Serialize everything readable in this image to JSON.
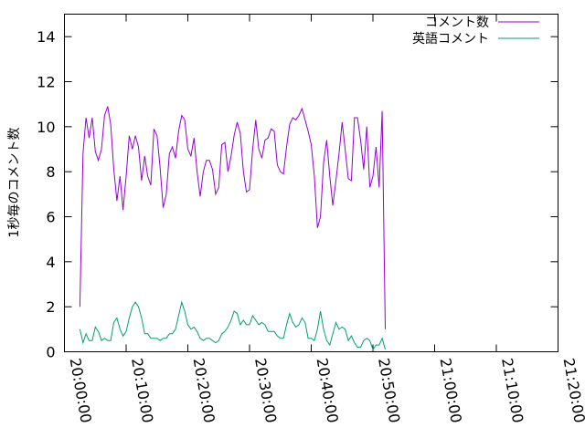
{
  "chart_data": {
    "type": "line",
    "ylabel": "1秒毎のコメント数",
    "xlabel": "",
    "legend_position": "top-right",
    "grid": false,
    "xlim": [
      "20:00:00",
      "21:20:00"
    ],
    "ylim": [
      0,
      15
    ],
    "y_ticks": [
      "0",
      "2",
      "4",
      "6",
      "8",
      "10",
      "12",
      "14"
    ],
    "x_ticks": [
      "20:00:00",
      "20:10:00",
      "20:20:00",
      "20:30:00",
      "20:40:00",
      "20:50:00",
      "21:00:00",
      "21:10:00",
      "21:20:00"
    ],
    "series": [
      {
        "name": "コメント数",
        "color": "#9400d3",
        "points": [
          [
            "20:02:30",
            2.0
          ],
          [
            "20:03:00",
            8.8
          ],
          [
            "20:03:30",
            10.4
          ],
          [
            "20:04:00",
            9.5
          ],
          [
            "20:04:30",
            10.4
          ],
          [
            "20:05:00",
            8.9
          ],
          [
            "20:05:30",
            8.5
          ],
          [
            "20:06:00",
            9.0
          ],
          [
            "20:06:30",
            10.5
          ],
          [
            "20:07:00",
            10.9
          ],
          [
            "20:07:30",
            10.1
          ],
          [
            "20:08:00",
            8.1
          ],
          [
            "20:08:30",
            6.7
          ],
          [
            "20:09:00",
            7.8
          ],
          [
            "20:09:30",
            6.3
          ],
          [
            "20:10:00",
            7.8
          ],
          [
            "20:10:30",
            9.6
          ],
          [
            "20:11:00",
            9.0
          ],
          [
            "20:11:30",
            9.6
          ],
          [
            "20:12:00",
            9.1
          ],
          [
            "20:12:30",
            7.6
          ],
          [
            "20:13:00",
            8.7
          ],
          [
            "20:13:30",
            7.8
          ],
          [
            "20:14:00",
            7.4
          ],
          [
            "20:14:30",
            9.9
          ],
          [
            "20:15:00",
            9.6
          ],
          [
            "20:15:30",
            8.2
          ],
          [
            "20:16:00",
            6.4
          ],
          [
            "20:16:30",
            7.0
          ],
          [
            "20:17:00",
            8.8
          ],
          [
            "20:17:30",
            9.1
          ],
          [
            "20:18:00",
            8.6
          ],
          [
            "20:18:30",
            9.8
          ],
          [
            "20:19:00",
            10.5
          ],
          [
            "20:19:30",
            10.3
          ],
          [
            "20:20:00",
            9.0
          ],
          [
            "20:20:30",
            8.7
          ],
          [
            "20:21:00",
            9.5
          ],
          [
            "20:21:30",
            8.0
          ],
          [
            "20:22:00",
            6.9
          ],
          [
            "20:22:30",
            8.0
          ],
          [
            "20:23:00",
            8.5
          ],
          [
            "20:23:30",
            8.5
          ],
          [
            "20:24:00",
            8.1
          ],
          [
            "20:24:30",
            7.0
          ],
          [
            "20:25:00",
            7.3
          ],
          [
            "20:25:30",
            9.2
          ],
          [
            "20:26:00",
            9.3
          ],
          [
            "20:26:30",
            8.0
          ],
          [
            "20:27:00",
            8.7
          ],
          [
            "20:27:30",
            9.6
          ],
          [
            "20:28:00",
            10.2
          ],
          [
            "20:28:30",
            9.7
          ],
          [
            "20:29:00",
            8.0
          ],
          [
            "20:29:30",
            7.1
          ],
          [
            "20:30:00",
            7.2
          ],
          [
            "20:30:30",
            9.0
          ],
          [
            "20:31:00",
            10.3
          ],
          [
            "20:31:30",
            9.0
          ],
          [
            "20:32:00",
            8.6
          ],
          [
            "20:32:30",
            9.4
          ],
          [
            "20:33:00",
            9.5
          ],
          [
            "20:33:30",
            9.9
          ],
          [
            "20:34:00",
            9.8
          ],
          [
            "20:34:30",
            8.3
          ],
          [
            "20:35:00",
            8.0
          ],
          [
            "20:35:30",
            7.9
          ],
          [
            "20:36:00",
            9.1
          ],
          [
            "20:36:30",
            10.1
          ],
          [
            "20:37:00",
            10.4
          ],
          [
            "20:37:30",
            10.3
          ],
          [
            "20:38:00",
            10.5
          ],
          [
            "20:38:30",
            10.8
          ],
          [
            "20:39:00",
            10.3
          ],
          [
            "20:39:30",
            9.8
          ],
          [
            "20:40:00",
            9.2
          ],
          [
            "20:40:30",
            7.8
          ],
          [
            "20:41:00",
            5.5
          ],
          [
            "20:41:30",
            6.0
          ],
          [
            "20:42:00",
            8.4
          ],
          [
            "20:42:30",
            9.4
          ],
          [
            "20:43:00",
            7.8
          ],
          [
            "20:43:30",
            6.5
          ],
          [
            "20:44:00",
            7.6
          ],
          [
            "20:44:30",
            8.8
          ],
          [
            "20:45:00",
            10.2
          ],
          [
            "20:45:30",
            9.0
          ],
          [
            "20:46:00",
            7.7
          ],
          [
            "20:46:30",
            7.6
          ],
          [
            "20:47:00",
            10.4
          ],
          [
            "20:47:30",
            10.4
          ],
          [
            "20:48:00",
            9.4
          ],
          [
            "20:48:30",
            8.1
          ],
          [
            "20:49:00",
            10.0
          ],
          [
            "20:49:30",
            7.3
          ],
          [
            "20:50:00",
            7.8
          ],
          [
            "20:50:30",
            9.1
          ],
          [
            "20:51:00",
            7.3
          ],
          [
            "20:51:30",
            10.7
          ],
          [
            "20:52:00",
            1.0
          ]
        ]
      },
      {
        "name": "英語コメント",
        "color": "#009e73",
        "points": [
          [
            "20:02:30",
            1.0
          ],
          [
            "20:03:00",
            0.4
          ],
          [
            "20:03:30",
            0.8
          ],
          [
            "20:04:00",
            0.5
          ],
          [
            "20:04:30",
            0.5
          ],
          [
            "20:05:00",
            1.1
          ],
          [
            "20:05:30",
            0.9
          ],
          [
            "20:06:00",
            0.5
          ],
          [
            "20:06:30",
            0.6
          ],
          [
            "20:07:00",
            0.5
          ],
          [
            "20:07:30",
            0.5
          ],
          [
            "20:08:00",
            1.3
          ],
          [
            "20:08:30",
            1.5
          ],
          [
            "20:09:00",
            1.0
          ],
          [
            "20:09:30",
            0.7
          ],
          [
            "20:10:00",
            0.9
          ],
          [
            "20:10:30",
            1.5
          ],
          [
            "20:11:00",
            2.0
          ],
          [
            "20:11:30",
            2.2
          ],
          [
            "20:12:00",
            2.0
          ],
          [
            "20:12:30",
            1.5
          ],
          [
            "20:13:00",
            0.8
          ],
          [
            "20:13:30",
            0.8
          ],
          [
            "20:14:00",
            0.6
          ],
          [
            "20:14:30",
            0.6
          ],
          [
            "20:15:00",
            0.6
          ],
          [
            "20:15:30",
            0.5
          ],
          [
            "20:16:00",
            0.6
          ],
          [
            "20:16:30",
            0.6
          ],
          [
            "20:17:00",
            0.8
          ],
          [
            "20:17:30",
            0.8
          ],
          [
            "20:18:00",
            1.0
          ],
          [
            "20:18:30",
            1.6
          ],
          [
            "20:19:00",
            2.2
          ],
          [
            "20:19:30",
            1.8
          ],
          [
            "20:20:00",
            1.2
          ],
          [
            "20:20:30",
            1.0
          ],
          [
            "20:21:00",
            1.1
          ],
          [
            "20:21:30",
            0.9
          ],
          [
            "20:22:00",
            0.6
          ],
          [
            "20:22:30",
            0.5
          ],
          [
            "20:23:00",
            0.6
          ],
          [
            "20:23:30",
            0.6
          ],
          [
            "20:24:00",
            0.5
          ],
          [
            "20:24:30",
            0.4
          ],
          [
            "20:25:00",
            0.5
          ],
          [
            "20:25:30",
            0.8
          ],
          [
            "20:26:00",
            0.9
          ],
          [
            "20:26:30",
            1.1
          ],
          [
            "20:27:00",
            1.4
          ],
          [
            "20:27:30",
            1.8
          ],
          [
            "20:28:00",
            1.7
          ],
          [
            "20:28:30",
            1.2
          ],
          [
            "20:29:00",
            1.4
          ],
          [
            "20:29:30",
            1.2
          ],
          [
            "20:30:00",
            1.2
          ],
          [
            "20:30:30",
            1.6
          ],
          [
            "20:31:00",
            1.4
          ],
          [
            "20:31:30",
            1.2
          ],
          [
            "20:32:00",
            1.3
          ],
          [
            "20:32:30",
            1.2
          ],
          [
            "20:33:00",
            0.9
          ],
          [
            "20:33:30",
            0.9
          ],
          [
            "20:34:00",
            0.9
          ],
          [
            "20:34:30",
            0.7
          ],
          [
            "20:35:00",
            0.6
          ],
          [
            "20:35:30",
            0.6
          ],
          [
            "20:36:00",
            1.2
          ],
          [
            "20:36:30",
            1.7
          ],
          [
            "20:37:00",
            1.3
          ],
          [
            "20:37:30",
            1.1
          ],
          [
            "20:38:00",
            1.2
          ],
          [
            "20:38:30",
            1.5
          ],
          [
            "20:39:00",
            1.3
          ],
          [
            "20:39:30",
            0.6
          ],
          [
            "20:40:00",
            0.6
          ],
          [
            "20:40:30",
            0.5
          ],
          [
            "20:41:00",
            1.0
          ],
          [
            "20:41:30",
            1.8
          ],
          [
            "20:42:00",
            1.0
          ],
          [
            "20:42:30",
            0.5
          ],
          [
            "20:43:00",
            0.3
          ],
          [
            "20:43:30",
            0.8
          ],
          [
            "20:44:00",
            1.3
          ],
          [
            "20:44:30",
            1.0
          ],
          [
            "20:45:00",
            1.1
          ],
          [
            "20:45:30",
            1.0
          ],
          [
            "20:46:00",
            0.5
          ],
          [
            "20:46:30",
            0.7
          ],
          [
            "20:47:00",
            0.4
          ],
          [
            "20:47:30",
            0.2
          ],
          [
            "20:48:00",
            0.2
          ],
          [
            "20:48:30",
            0.5
          ],
          [
            "20:49:00",
            0.6
          ],
          [
            "20:49:30",
            0.5
          ],
          [
            "20:50:00",
            0.1
          ],
          [
            "20:50:30",
            0.3
          ],
          [
            "20:51:00",
            0.3
          ],
          [
            "20:51:30",
            0.6
          ],
          [
            "20:52:00",
            0.1
          ]
        ]
      }
    ]
  }
}
